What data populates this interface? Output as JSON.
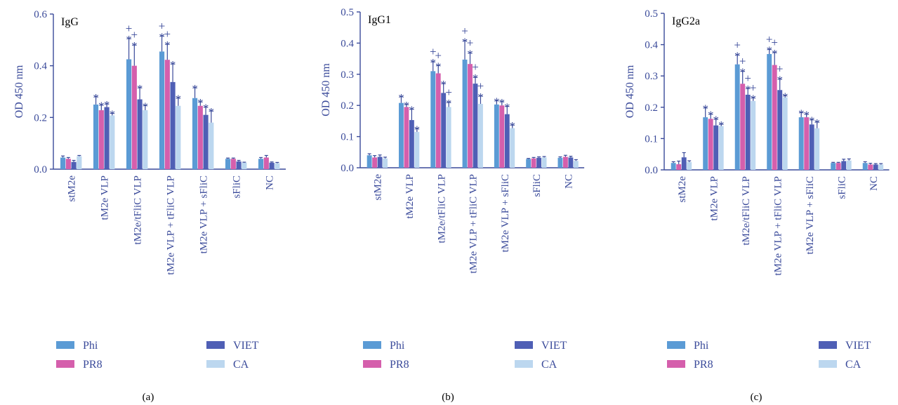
{
  "colors": {
    "Phi": "#5b9bd5",
    "PR8": "#d55fac",
    "VIET": "#4f5fb5",
    "CA": "#bcd7ef",
    "axis": "#3a4a9a"
  },
  "chart_data": [
    {
      "type": "bar",
      "title": "IgG",
      "ylabel": "OD 450 nm",
      "ylim": [
        0,
        0.6
      ],
      "yticks": [
        "0.0",
        "0.2",
        "0.4",
        "0.6"
      ],
      "categories": [
        "stM2e",
        "tM2e VLP",
        "tM2e/tFliC VLP",
        "tM2e VLP + tFliC VLP",
        "tM2e VLP + sFliC",
        "sFliC",
        "NC"
      ],
      "series": [
        {
          "name": "Phi",
          "values": [
            0.045,
            0.25,
            0.425,
            0.455,
            0.275,
            0.04,
            0.04
          ],
          "errors": [
            0.006,
            0.03,
            0.08,
            0.06,
            0.04,
            0.003,
            0.005
          ],
          "marks": [
            "",
            "*",
            "*+",
            "*+",
            "*",
            "",
            ""
          ]
        },
        {
          "name": "PR8",
          "values": [
            0.04,
            0.228,
            0.4,
            0.423,
            0.245,
            0.04,
            0.045
          ],
          "errors": [
            0.005,
            0.02,
            0.08,
            0.06,
            0.015,
            0.003,
            0.008
          ],
          "marks": [
            "",
            "*",
            "*+",
            "*+",
            "*",
            "",
            ""
          ]
        },
        {
          "name": "VIET",
          "values": [
            0.028,
            0.24,
            0.27,
            0.337,
            0.21,
            0.03,
            0.025
          ],
          "errors": [
            0.006,
            0.012,
            0.045,
            0.07,
            0.03,
            0.004,
            0.003
          ],
          "marks": [
            "",
            "*",
            "*",
            "*",
            "*",
            "",
            ""
          ]
        },
        {
          "name": "CA",
          "values": [
            0.05,
            0.208,
            0.228,
            0.245,
            0.18,
            0.025,
            0.023
          ],
          "errors": [
            0.003,
            0.008,
            0.018,
            0.03,
            0.045,
            0.002,
            0.003
          ],
          "marks": [
            "",
            "*",
            "*",
            "*",
            "*",
            "",
            ""
          ]
        }
      ],
      "legend": [
        "Phi",
        "PR8",
        "VIET",
        "CA"
      ],
      "panel_label": "(a)"
    },
    {
      "type": "bar",
      "title": "IgG1",
      "ylabel": "OD 450 nm",
      "ylim": [
        0,
        0.5
      ],
      "yticks": [
        "0.0",
        "0.1",
        "0.2",
        "0.3",
        "0.4",
        "0.5"
      ],
      "categories": [
        "stM2e",
        "tM2e VLP",
        "tM2e/tFliC VLP",
        "tM2e VLP + tFliC VLP",
        "tM2e VLP + sFliC",
        "sFliC",
        "NC"
      ],
      "series": [
        {
          "name": "Phi",
          "values": [
            0.04,
            0.208,
            0.31,
            0.347,
            0.203,
            0.028,
            0.032
          ],
          "errors": [
            0.005,
            0.02,
            0.03,
            0.06,
            0.012,
            0.002,
            0.003
          ],
          "marks": [
            "",
            "*",
            "*+",
            "*+",
            "*",
            "",
            ""
          ]
        },
        {
          "name": "PR8",
          "values": [
            0.033,
            0.195,
            0.303,
            0.333,
            0.2,
            0.03,
            0.035
          ],
          "errors": [
            0.006,
            0.008,
            0.025,
            0.035,
            0.012,
            0.003,
            0.005
          ],
          "marks": [
            "",
            "*",
            "*+",
            "*+",
            "*",
            "",
            ""
          ]
        },
        {
          "name": "VIET",
          "values": [
            0.035,
            0.153,
            0.24,
            0.27,
            0.172,
            0.032,
            0.033
          ],
          "errors": [
            0.006,
            0.035,
            0.03,
            0.02,
            0.025,
            0.003,
            0.004
          ],
          "marks": [
            "",
            "*",
            "*",
            "*+",
            "*",
            "",
            ""
          ]
        },
        {
          "name": "CA",
          "values": [
            0.03,
            0.115,
            0.195,
            0.205,
            0.127,
            0.033,
            0.022
          ],
          "errors": [
            0.004,
            0.01,
            0.015,
            0.025,
            0.01,
            0.003,
            0.004
          ],
          "marks": [
            "",
            "*",
            "*+",
            "*+",
            "*",
            "",
            ""
          ]
        }
      ],
      "legend": [
        "Phi",
        "PR8",
        "VIET",
        "CA"
      ],
      "panel_label": "(b)"
    },
    {
      "type": "bar",
      "title": "IgG2a",
      "ylabel": "OD 450 nm",
      "ylim": [
        0,
        0.5
      ],
      "yticks": [
        "0.0",
        "0.1",
        "0.2",
        "0.3",
        "0.4",
        "0.5"
      ],
      "categories": [
        "stM2e",
        "tM2e VLP",
        "tM2e/tFliC VLP",
        "tM2e VLP + tFliC VLP",
        "tM2e VLP + sFliC",
        "sFliC",
        "NC"
      ],
      "series": [
        {
          "name": "Phi",
          "values": [
            0.022,
            0.168,
            0.337,
            0.37,
            0.168,
            0.022,
            0.022
          ],
          "errors": [
            0.004,
            0.03,
            0.03,
            0.015,
            0.015,
            0.002,
            0.004
          ],
          "marks": [
            "",
            "*",
            "*+",
            "*+",
            "*",
            "",
            ""
          ]
        },
        {
          "name": "PR8",
          "values": [
            0.018,
            0.163,
            0.275,
            0.335,
            0.168,
            0.022,
            0.017
          ],
          "errors": [
            0.01,
            0.015,
            0.04,
            0.04,
            0.01,
            0.002,
            0.004
          ],
          "marks": [
            "",
            "*",
            "*+",
            "*+",
            "*",
            "",
            ""
          ]
        },
        {
          "name": "VIET",
          "values": [
            0.04,
            0.142,
            0.24,
            0.255,
            0.145,
            0.028,
            0.017
          ],
          "errors": [
            0.015,
            0.02,
            0.02,
            0.035,
            0.015,
            0.006,
            0.003
          ],
          "marks": [
            "",
            "*",
            "*+",
            "*+",
            "*",
            "",
            ""
          ]
        },
        {
          "name": "CA",
          "values": [
            0.025,
            0.14,
            0.22,
            0.232,
            0.133,
            0.03,
            0.017
          ],
          "errors": [
            0.004,
            0.006,
            0.01,
            0.005,
            0.02,
            0.005,
            0.003
          ],
          "marks": [
            "",
            "*",
            "*+",
            "*",
            "*",
            "",
            ""
          ]
        }
      ],
      "legend": [
        "Phi",
        "PR8",
        "VIET",
        "CA"
      ],
      "panel_label": "(c)"
    }
  ]
}
